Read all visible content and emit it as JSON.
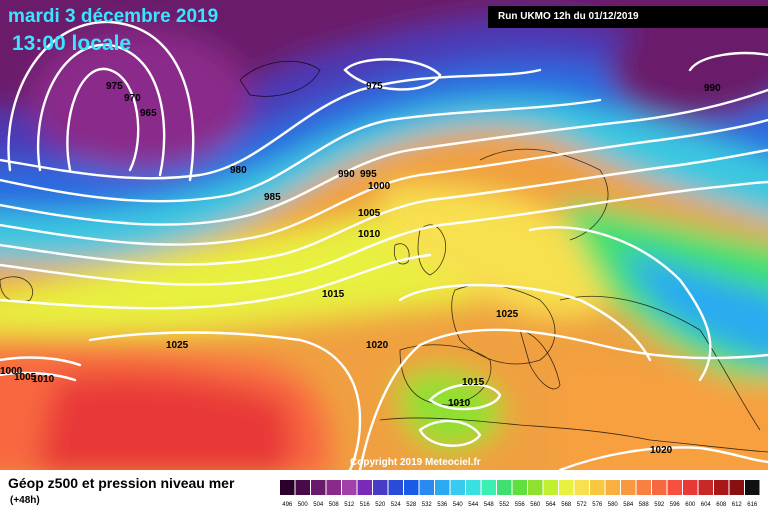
{
  "header": {
    "date_line": "mardi 3 décembre 2019",
    "time_line": "13:00 locale",
    "run_info": "Run UKMO 12h du 01/12/2019"
  },
  "footer": {
    "copyright": "Copyright 2019 Meteociel.fr",
    "legend_title": "Géop z500 et pression niveau mer",
    "legend_subtitle": "(+48h)"
  },
  "isobar_labels": [
    "975",
    "970",
    "965",
    "975",
    "990",
    "980",
    "985",
    "990",
    "995",
    "1000",
    "1005",
    "1010",
    "1015",
    "1025",
    "1020",
    "1025",
    "1015",
    "1010",
    "1020",
    "1000",
    "1005",
    "1010"
  ],
  "scale": {
    "values": [
      "496",
      "500",
      "504",
      "508",
      "512",
      "516",
      "520",
      "524",
      "528",
      "532",
      "536",
      "540",
      "544",
      "548",
      "552",
      "556",
      "560",
      "564",
      "568",
      "572",
      "576",
      "580",
      "584",
      "588",
      "592",
      "596",
      "600",
      "604",
      "608",
      "612",
      "616"
    ],
    "colors": [
      "#2a002a",
      "#4a0a4a",
      "#6a1a6a",
      "#8a2a8a",
      "#a040a8",
      "#7a2ab8",
      "#4a3ac8",
      "#2a4ad8",
      "#1a5ae8",
      "#2a8af0",
      "#2aaaf0",
      "#3acaf0",
      "#3ae0e0",
      "#3af0b0",
      "#40e070",
      "#60e040",
      "#90e030",
      "#c0f030",
      "#e8f040",
      "#f8e050",
      "#f8c840",
      "#f8b040",
      "#f89840",
      "#f88040",
      "#f86840",
      "#f85040",
      "#e83838",
      "#c82828",
      "#a81818",
      "#881010",
      "#101010"
    ]
  }
}
